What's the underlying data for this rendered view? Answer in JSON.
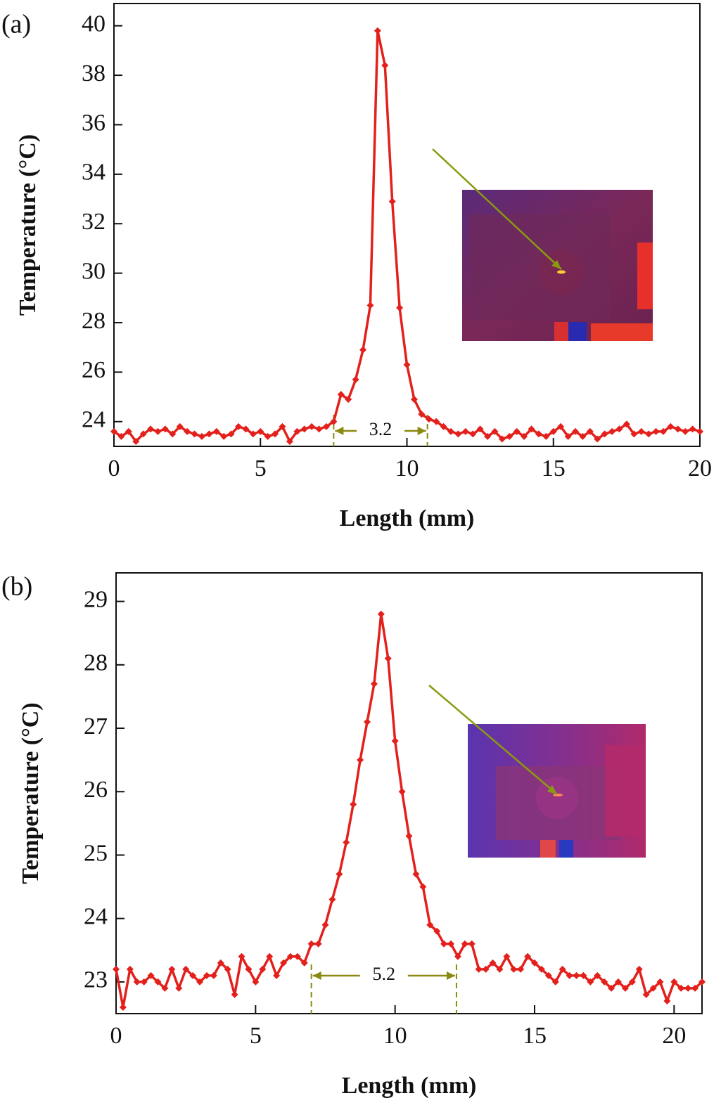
{
  "chart_data": [
    {
      "type": "line",
      "panel_label": "(a)",
      "xlabel": "Length (mm)",
      "ylabel": "Temperature (°C)",
      "xlim": [
        0,
        20
      ],
      "ylim": [
        23.0,
        40.9
      ],
      "xticks": [
        0,
        5,
        10,
        15,
        20
      ],
      "yticks": [
        24,
        26,
        28,
        30,
        32,
        34,
        36,
        38,
        40
      ],
      "color": "#e3201b",
      "x": [
        0,
        0.25,
        0.5,
        0.75,
        1,
        1.25,
        1.5,
        1.75,
        2,
        2.25,
        2.5,
        2.75,
        3,
        3.25,
        3.5,
        3.75,
        4,
        4.25,
        4.5,
        4.75,
        5,
        5.25,
        5.5,
        5.75,
        6,
        6.25,
        6.5,
        6.75,
        7,
        7.25,
        7.5,
        7.75,
        8,
        8.25,
        8.5,
        8.75,
        9,
        9.25,
        9.5,
        9.75,
        10,
        10.25,
        10.5,
        10.75,
        11,
        11.25,
        11.5,
        11.75,
        12,
        12.25,
        12.5,
        12.75,
        13,
        13.25,
        13.5,
        13.75,
        14,
        14.25,
        14.5,
        14.75,
        15,
        15.25,
        15.5,
        15.75,
        16,
        16.25,
        16.5,
        16.75,
        17,
        17.25,
        17.5,
        17.75,
        18,
        18.25,
        18.5,
        18.75,
        19,
        19.25,
        19.5,
        19.75,
        20
      ],
      "values": [
        23.6,
        23.4,
        23.6,
        23.2,
        23.5,
        23.7,
        23.6,
        23.7,
        23.5,
        23.8,
        23.6,
        23.5,
        23.4,
        23.5,
        23.6,
        23.4,
        23.5,
        23.8,
        23.7,
        23.5,
        23.6,
        23.4,
        23.5,
        23.8,
        23.2,
        23.6,
        23.7,
        23.8,
        23.7,
        23.8,
        24.0,
        25.1,
        24.9,
        25.7,
        26.9,
        28.7,
        39.8,
        38.4,
        32.9,
        28.6,
        26.3,
        24.9,
        24.3,
        24.1,
        24.0,
        23.8,
        23.6,
        23.5,
        23.6,
        23.5,
        23.7,
        23.4,
        23.6,
        23.3,
        23.4,
        23.6,
        23.4,
        23.7,
        23.5,
        23.4,
        23.6,
        23.8,
        23.4,
        23.6,
        23.4,
        23.6,
        23.3,
        23.5,
        23.6,
        23.7,
        23.9,
        23.5,
        23.6,
        23.5,
        23.6,
        23.6,
        23.8,
        23.7,
        23.6,
        23.7,
        23.6
      ],
      "annotation": {
        "text": "3.2",
        "x_start": 7.5,
        "x_end": 10.7
      }
    },
    {
      "type": "line",
      "panel_label": "(b)",
      "xlabel": "Length (mm)",
      "ylabel": "Temperature (°C)",
      "xlim": [
        0,
        21
      ],
      "ylim": [
        22.5,
        29.45
      ],
      "xticks": [
        0,
        5,
        10,
        15,
        20
      ],
      "yticks": [
        23,
        24,
        25,
        26,
        27,
        28,
        29
      ],
      "color": "#e3201b",
      "x": [
        0,
        0.25,
        0.5,
        0.75,
        1,
        1.25,
        1.5,
        1.75,
        2,
        2.25,
        2.5,
        2.75,
        3,
        3.25,
        3.5,
        3.75,
        4,
        4.25,
        4.5,
        4.75,
        5,
        5.25,
        5.5,
        5.75,
        6,
        6.25,
        6.5,
        6.75,
        7,
        7.25,
        7.5,
        7.75,
        8,
        8.25,
        8.5,
        8.75,
        9,
        9.25,
        9.5,
        9.75,
        10,
        10.25,
        10.5,
        10.75,
        11,
        11.25,
        11.5,
        11.75,
        12,
        12.25,
        12.5,
        12.75,
        13,
        13.25,
        13.5,
        13.75,
        14,
        14.25,
        14.5,
        14.75,
        15,
        15.25,
        15.5,
        15.75,
        16,
        16.25,
        16.5,
        16.75,
        17,
        17.25,
        17.5,
        17.75,
        18,
        18.25,
        18.5,
        18.75,
        19,
        19.25,
        19.5,
        19.75,
        20,
        20.25,
        20.5,
        20.75,
        21
      ],
      "values": [
        23.2,
        22.6,
        23.2,
        23.0,
        23.0,
        23.1,
        23.0,
        22.9,
        23.2,
        22.9,
        23.2,
        23.1,
        23.0,
        23.1,
        23.1,
        23.3,
        23.2,
        22.8,
        23.4,
        23.2,
        23.0,
        23.2,
        23.4,
        23.1,
        23.3,
        23.4,
        23.4,
        23.3,
        23.6,
        23.6,
        23.9,
        24.3,
        24.7,
        25.2,
        25.8,
        26.5,
        27.1,
        27.7,
        28.8,
        28.1,
        26.8,
        26.0,
        25.3,
        24.7,
        24.5,
        23.9,
        23.8,
        23.6,
        23.6,
        23.4,
        23.6,
        23.6,
        23.2,
        23.2,
        23.3,
        23.2,
        23.4,
        23.2,
        23.2,
        23.4,
        23.3,
        23.2,
        23.1,
        23.0,
        23.2,
        23.1,
        23.1,
        23.1,
        23.0,
        23.1,
        23.0,
        22.9,
        23.0,
        22.9,
        23.0,
        23.2,
        22.8,
        22.9,
        23.0,
        22.7,
        23.0,
        22.9,
        22.9,
        22.9,
        23.0
      ],
      "annotation": {
        "text": "5.2",
        "x_start": 7.0,
        "x_end": 12.2
      }
    }
  ]
}
